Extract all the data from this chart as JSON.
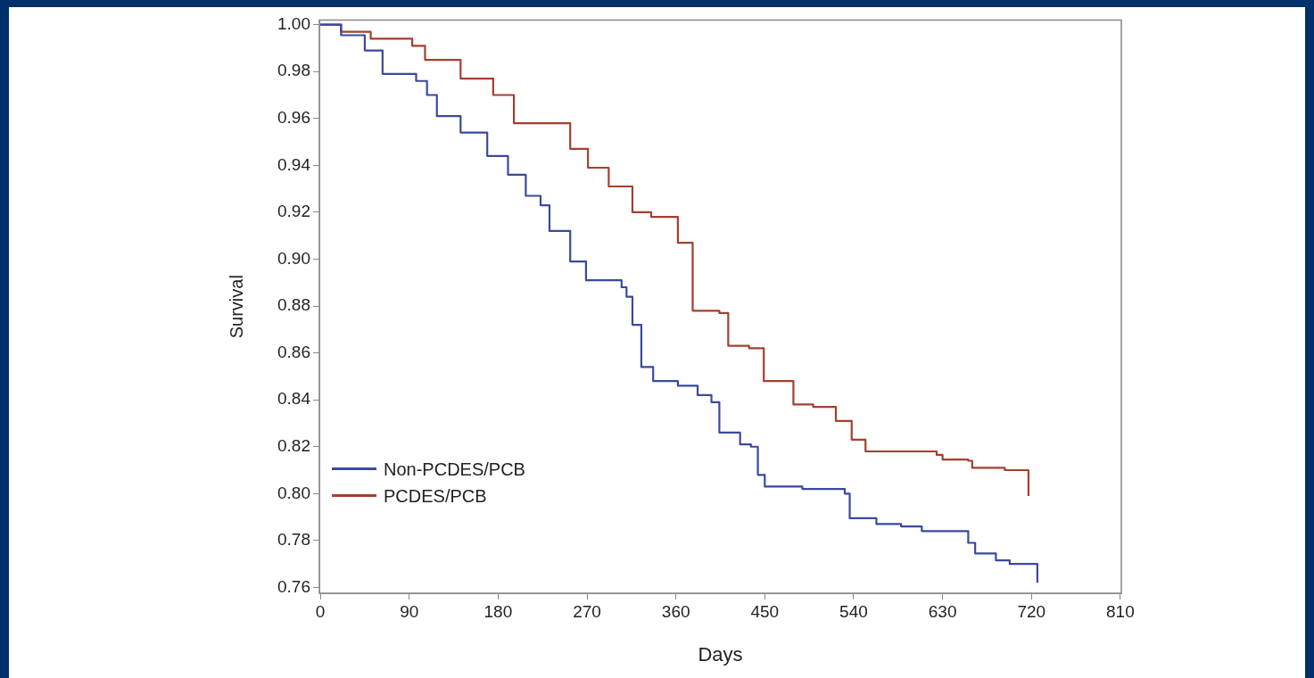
{
  "chart_data": {
    "type": "step",
    "xlabel": "Days",
    "ylabel": "Survival",
    "xlim": [
      -1,
      811
    ],
    "ylim": [
      0.7575,
      1.002
    ],
    "xticks": [
      0,
      90,
      180,
      270,
      360,
      450,
      540,
      630,
      720,
      810
    ],
    "yticks": [
      {
        "value": 0.76,
        "label": "0.76"
      },
      {
        "value": 0.78,
        "label": "0.78"
      },
      {
        "value": 0.8,
        "label": "0.80"
      },
      {
        "value": 0.82,
        "label": "0.82"
      },
      {
        "value": 0.84,
        "label": "0.84"
      },
      {
        "value": 0.86,
        "label": "0.86"
      },
      {
        "value": 0.88,
        "label": "0.88"
      },
      {
        "value": 0.9,
        "label": "0.90"
      },
      {
        "value": 0.92,
        "label": "0.92"
      },
      {
        "value": 0.94,
        "label": "0.94"
      },
      {
        "value": 0.96,
        "label": "0.96"
      },
      {
        "value": 0.98,
        "label": "0.98"
      },
      {
        "value": 1,
        "label": "1.00"
      }
    ],
    "grid": false,
    "legend": "bottom left",
    "line_style": "solid",
    "marker": "none",
    "series": [
      {
        "name": "Non-PCDES/PCB",
        "color": "#3a4a9c",
        "x": [
          0,
          21,
          45,
          63,
          97,
          108,
          118,
          142,
          169,
          190,
          208,
          223,
          232,
          253,
          269,
          305,
          310,
          316,
          325,
          337,
          362,
          382,
          396,
          404,
          425,
          436,
          443,
          450,
          488,
          531,
          536,
          561,
          563,
          588,
          609,
          653,
          656,
          663,
          684,
          698,
          726,
          726
        ],
        "values": [
          1,
          0.9955,
          0.989,
          0.979,
          0.976,
          0.97,
          0.961,
          0.954,
          0.944,
          0.936,
          0.927,
          0.923,
          0.912,
          0.899,
          0.891,
          0.888,
          0.884,
          0.872,
          0.854,
          0.848,
          0.846,
          0.842,
          0.839,
          0.826,
          0.821,
          0.82,
          0.808,
          0.803,
          0.802,
          0.8,
          0.7895,
          0.7895,
          0.787,
          0.786,
          0.784,
          0.784,
          0.779,
          0.7745,
          0.7715,
          0.77,
          0.765,
          0.762
        ]
      },
      {
        "name": "PCDES/PCB",
        "color": "#a3402e",
        "x": [
          0,
          21,
          51,
          93,
          106,
          129,
          142,
          175,
          196,
          226,
          253,
          271,
          292,
          316,
          335,
          362,
          377,
          404,
          413,
          434,
          449,
          479,
          499,
          522,
          538,
          552,
          579,
          624,
          630,
          656,
          660,
          693,
          717,
          717
        ],
        "values": [
          1,
          0.997,
          0.994,
          0.991,
          0.985,
          0.985,
          0.977,
          0.97,
          0.958,
          0.958,
          0.947,
          0.939,
          0.931,
          0.92,
          0.918,
          0.907,
          0.878,
          0.877,
          0.863,
          0.862,
          0.848,
          0.838,
          0.837,
          0.831,
          0.823,
          0.818,
          0.818,
          0.8165,
          0.8145,
          0.814,
          0.811,
          0.81,
          0.803,
          0.799
        ]
      }
    ]
  }
}
